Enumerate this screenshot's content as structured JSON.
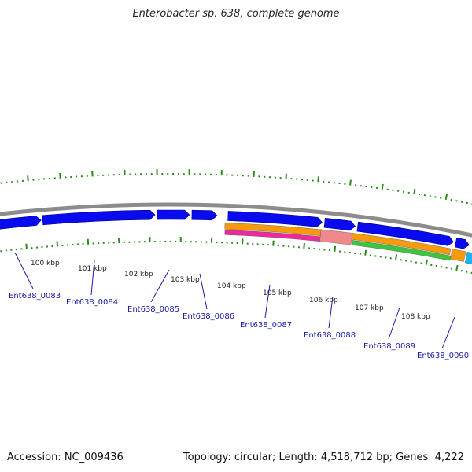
{
  "title": "Enterobacter sp. 638, complete genome",
  "footer": {
    "accession": "Accession: NC_009436",
    "summary": "Topology: circular; Length: 4,518,712 bp; Genes: 4,222"
  },
  "colors": {
    "backbone": "#8c8c8c",
    "cds": "#0a0aee",
    "ticks": "#2a8a1a",
    "gene_label": "#1a1aa8",
    "orange_feature": "#f79a0c",
    "magenta_feature": "#ee2a9a",
    "pink_feature": "#ee8a8a",
    "green_feature": "#3ec43e",
    "cyan_feature": "#1ab4ee"
  },
  "kbp_ticks": [
    "100 kbp",
    "101 kbp",
    "102 kbp",
    "103 kbp",
    "104 kbp",
    "105 kbp",
    "106 kbp",
    "107 kbp",
    "108 kbp"
  ],
  "genes": [
    "Ent638_0083",
    "Ent638_0084",
    "Ent638_0085",
    "Ent638_0086",
    "Ent638_0087",
    "Ent638_0088",
    "Ent638_0089",
    "Ent638_0090"
  ]
}
